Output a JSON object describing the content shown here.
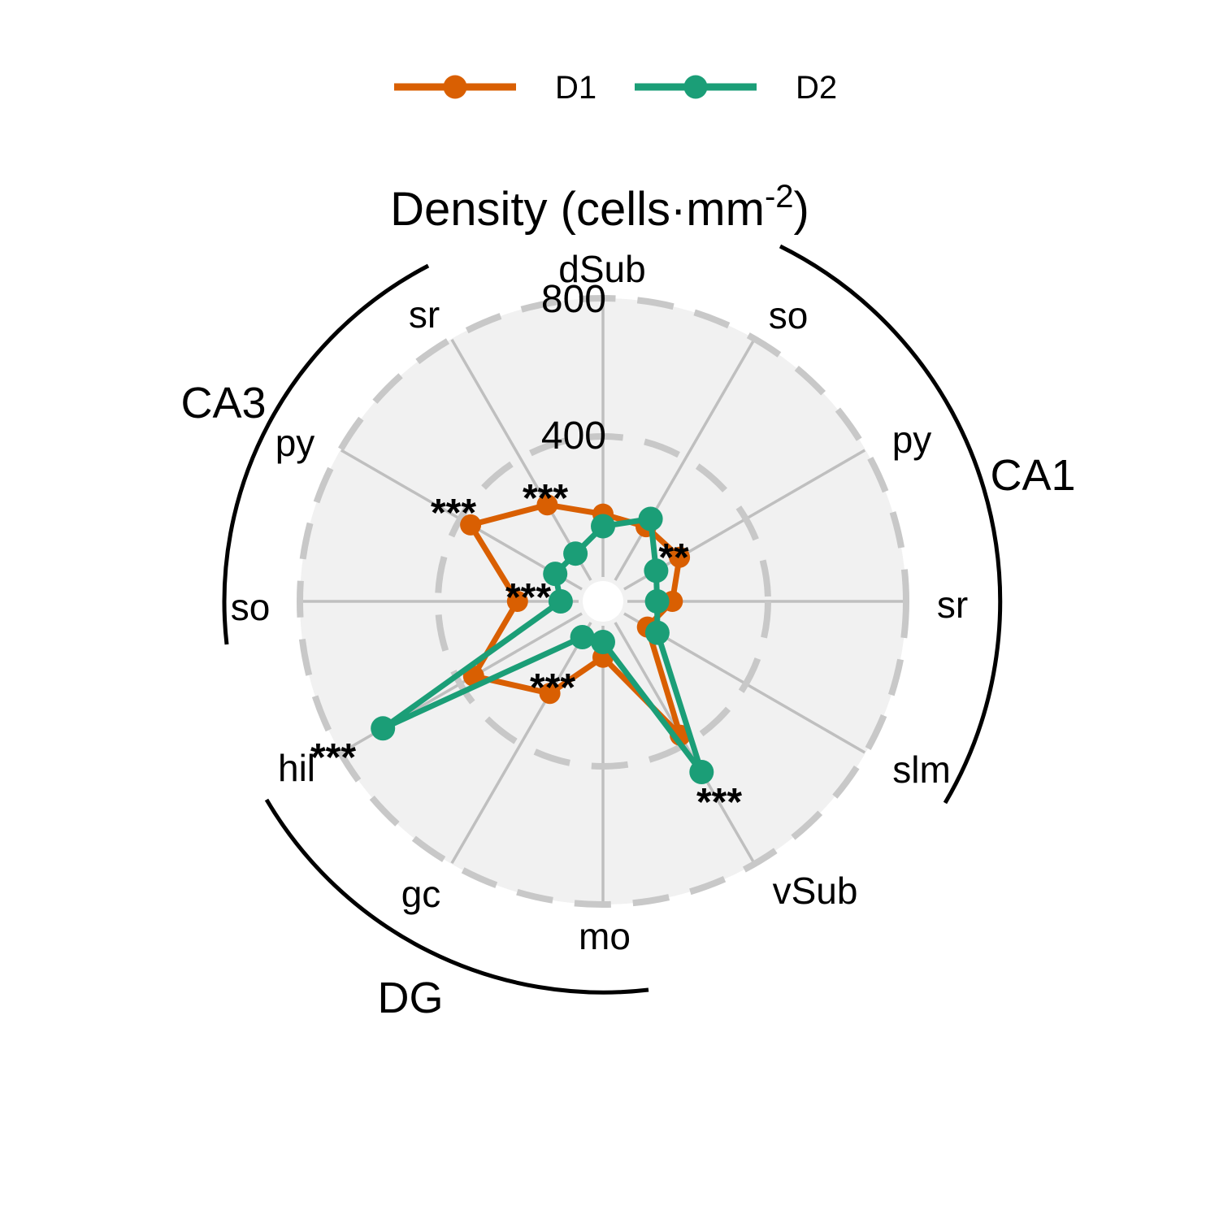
{
  "figure": {
    "title": "Density (cells·mm⁻²)",
    "title_parts": {
      "main": "Density (cells·mm",
      "superscript": "-2",
      "suffix": ")"
    }
  },
  "legend": {
    "items": [
      {
        "label": "D1",
        "color": "#D95F02"
      },
      {
        "label": "D2",
        "color": "#1B9E77"
      }
    ]
  },
  "chart_data": {
    "type": "radar",
    "title": "Density (cells·mm⁻²)",
    "radial_axis": {
      "min": 0,
      "max": 800,
      "ticks": [
        400,
        800
      ],
      "tick_labels": [
        "400",
        "800"
      ]
    },
    "categories": [
      "dSub",
      "so",
      "py",
      "sr",
      "slm",
      "vSub",
      "mo",
      "gc",
      "hil",
      "so",
      "py",
      "sr"
    ],
    "category_groups": [
      {
        "name": "CA1",
        "categories": [
          "so",
          "py",
          "sr",
          "slm"
        ]
      },
      {
        "name": "DG",
        "categories": [
          "mo",
          "gc",
          "hil"
        ]
      },
      {
        "name": "CA3",
        "categories": [
          "so",
          "py",
          "sr"
        ]
      }
    ],
    "significance": [
      "",
      "",
      "**",
      "",
      "",
      "***",
      "",
      "***",
      "***",
      "***",
      "***",
      "***"
    ],
    "series": [
      {
        "name": "D1",
        "color": "#D95F02",
        "values": [
          175,
          172,
          178,
          123,
          71,
          370,
          84,
          230,
          355,
          170,
          365,
          245
        ]
      },
      {
        "name": "D2",
        "color": "#1B9E77",
        "values": [
          140,
          198,
          100,
          79,
          104,
          493,
          40,
          42,
          658,
          45,
          82,
          82
        ]
      }
    ],
    "legend_position": "top",
    "grid": {
      "rings": [
        400,
        800
      ],
      "rings_dashed": true,
      "spokes": 12
    }
  }
}
